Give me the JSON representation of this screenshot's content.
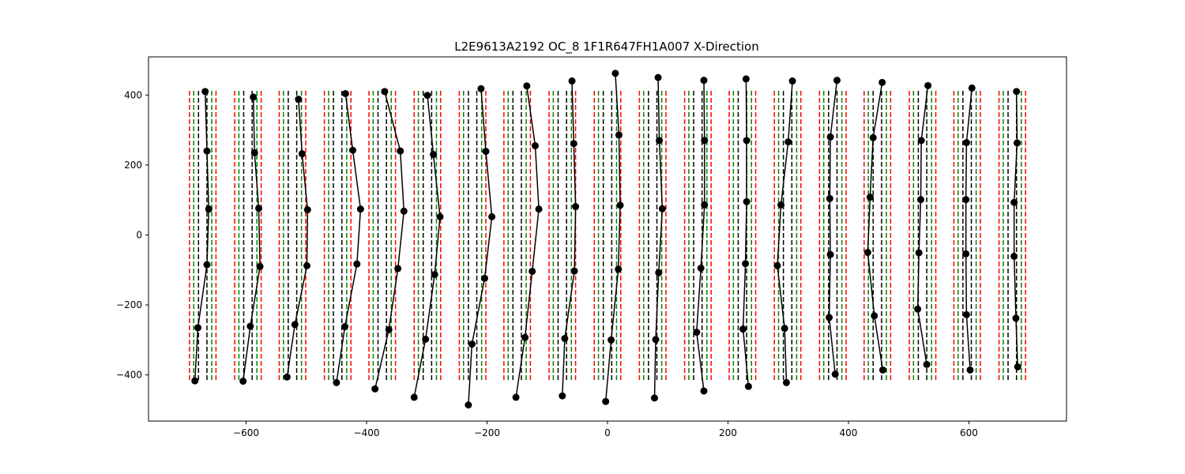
{
  "chart_data": {
    "type": "line",
    "title": "L2E9613A2192  OC_8  1F1R647FH1A007  X-Direction",
    "xlabel": "",
    "ylabel": "",
    "xlim": [
      -762,
      762
    ],
    "ylim": [
      -532,
      509
    ],
    "xticks": [
      -600,
      -400,
      -200,
      0,
      200,
      400,
      600
    ],
    "yticks": [
      -400,
      -200,
      0,
      200,
      400
    ],
    "xtick_labels": [
      "−600",
      "−400",
      "−200",
      "0",
      "200",
      "400",
      "600"
    ],
    "ytick_labels": [
      "−400",
      "−200",
      "0",
      "200",
      "400"
    ],
    "grid": false,
    "reference_lines": {
      "y_range": [
        -420,
        412
      ],
      "offsets": {
        "red": [
          -22,
          22
        ],
        "green": [
          -15,
          15
        ],
        "black": [
          -7,
          7
        ]
      },
      "colors": {
        "red": "#ff0000",
        "green": "#008000",
        "black": "#000000"
      }
    },
    "series": [
      {
        "center": -672,
        "points": [
          [
            -668,
            410
          ],
          [
            -665,
            240
          ],
          [
            -662,
            74
          ],
          [
            -665,
            -85
          ],
          [
            -680,
            -265
          ],
          [
            -685,
            -417
          ]
        ]
      },
      {
        "center": -597,
        "points": [
          [
            -588,
            394
          ],
          [
            -586,
            235
          ],
          [
            -579,
            76
          ],
          [
            -577,
            -90
          ],
          [
            -593,
            -261
          ],
          [
            -605,
            -418
          ]
        ]
      },
      {
        "center": -523,
        "points": [
          [
            -513,
            388
          ],
          [
            -507,
            232
          ],
          [
            -498,
            72
          ],
          [
            -499,
            -88
          ],
          [
            -519,
            -256
          ],
          [
            -532,
            -406
          ]
        ]
      },
      {
        "center": -448,
        "points": [
          [
            -435,
            404
          ],
          [
            -423,
            242
          ],
          [
            -410,
            74
          ],
          [
            -416,
            -83
          ],
          [
            -436,
            -262
          ],
          [
            -450,
            -422
          ]
        ]
      },
      {
        "center": -374,
        "points": [
          [
            -370,
            410
          ],
          [
            -344,
            240
          ],
          [
            -338,
            68
          ],
          [
            -348,
            -96
          ],
          [
            -363,
            -271
          ],
          [
            -386,
            -440
          ]
        ]
      },
      {
        "center": -299,
        "points": [
          [
            -299,
            399
          ],
          [
            -289,
            230
          ],
          [
            -278,
            52
          ],
          [
            -287,
            -113
          ],
          [
            -302,
            -298
          ],
          [
            -321,
            -464
          ]
        ]
      },
      {
        "center": -224,
        "points": [
          [
            -210,
            418
          ],
          [
            -202,
            239
          ],
          [
            -192,
            52
          ],
          [
            -204,
            -124
          ],
          [
            -225,
            -312
          ],
          [
            -231,
            -486
          ]
        ]
      },
      {
        "center": -150,
        "points": [
          [
            -134,
            426
          ],
          [
            -120,
            255
          ],
          [
            -114,
            74
          ],
          [
            -125,
            -104
          ],
          [
            -137,
            -293
          ],
          [
            -152,
            -464
          ]
        ]
      },
      {
        "center": -75,
        "points": [
          [
            -59,
            440
          ],
          [
            -56,
            261
          ],
          [
            -53,
            81
          ],
          [
            -55,
            -103
          ],
          [
            -71,
            -296
          ],
          [
            -75,
            -460
          ]
        ]
      },
      {
        "center": 0,
        "points": [
          [
            13,
            462
          ],
          [
            19,
            286
          ],
          [
            21,
            85
          ],
          [
            18,
            -98
          ],
          [
            6,
            -300
          ],
          [
            -3,
            -476
          ]
        ]
      },
      {
        "center": 75,
        "points": [
          [
            84,
            450
          ],
          [
            86,
            270
          ],
          [
            91,
            75
          ],
          [
            85,
            -108
          ],
          [
            80,
            -299
          ],
          [
            78,
            -466
          ]
        ]
      },
      {
        "center": 150,
        "points": [
          [
            160,
            442
          ],
          [
            161,
            270
          ],
          [
            161,
            86
          ],
          [
            155,
            -95
          ],
          [
            148,
            -278
          ],
          [
            160,
            -446
          ]
        ]
      },
      {
        "center": 224,
        "points": [
          [
            230,
            446
          ],
          [
            231,
            270
          ],
          [
            231,
            95
          ],
          [
            229,
            -82
          ],
          [
            225,
            -269
          ],
          [
            234,
            -433
          ]
        ]
      },
      {
        "center": 299,
        "points": [
          [
            307,
            440
          ],
          [
            300,
            266
          ],
          [
            288,
            86
          ],
          [
            282,
            -88
          ],
          [
            294,
            -267
          ],
          [
            297,
            -422
          ]
        ]
      },
      {
        "center": 374,
        "points": [
          [
            381,
            442
          ],
          [
            370,
            280
          ],
          [
            369,
            104
          ],
          [
            370,
            -56
          ],
          [
            368,
            -236
          ],
          [
            378,
            -398
          ]
        ]
      },
      {
        "center": 448,
        "points": [
          [
            456,
            436
          ],
          [
            441,
            278
          ],
          [
            436,
            108
          ],
          [
            432,
            -50
          ],
          [
            443,
            -231
          ],
          [
            457,
            -386
          ]
        ]
      },
      {
        "center": 523,
        "points": [
          [
            532,
            427
          ],
          [
            521,
            270
          ],
          [
            520,
            101
          ],
          [
            517,
            -51
          ],
          [
            515,
            -212
          ],
          [
            530,
            -370
          ]
        ]
      },
      {
        "center": 597,
        "points": [
          [
            605,
            420
          ],
          [
            596,
            264
          ],
          [
            595,
            101
          ],
          [
            595,
            -54
          ],
          [
            596,
            -228
          ],
          [
            602,
            -386
          ]
        ]
      },
      {
        "center": 672,
        "points": [
          [
            679,
            410
          ],
          [
            680,
            263
          ],
          [
            675,
            93
          ],
          [
            675,
            -61
          ],
          [
            678,
            -238
          ],
          [
            681,
            -377
          ]
        ]
      }
    ]
  }
}
